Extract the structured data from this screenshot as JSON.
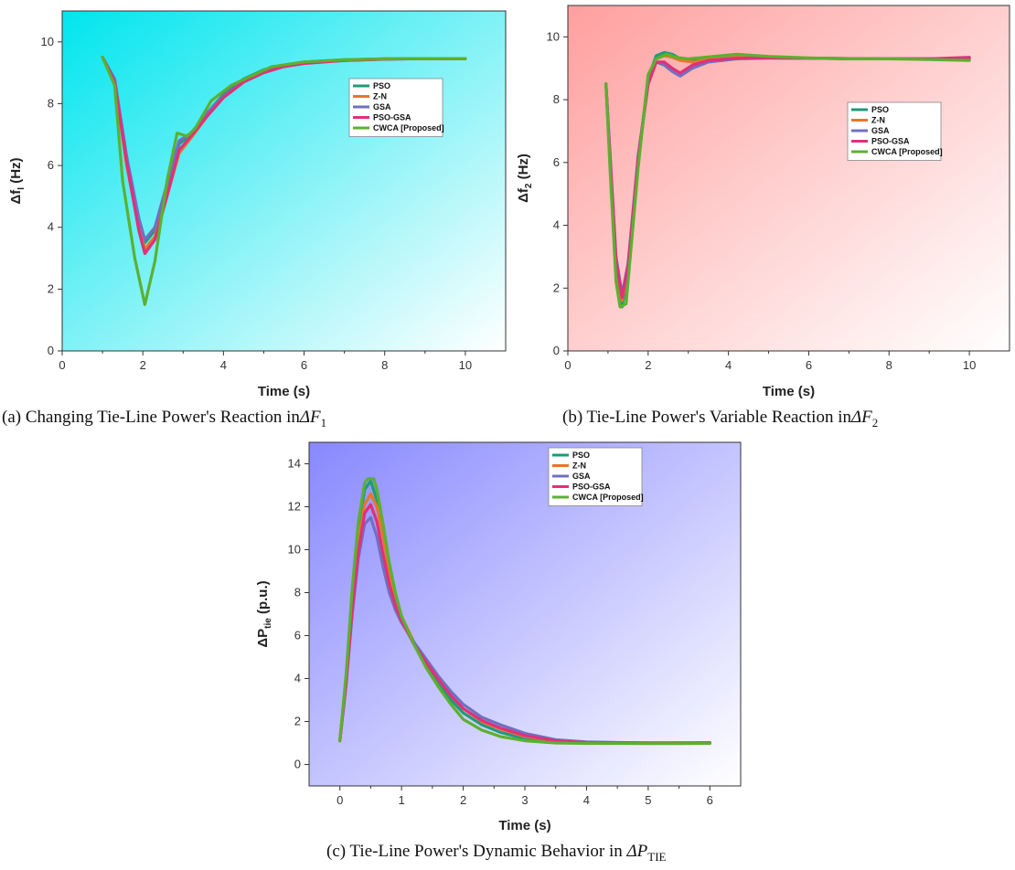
{
  "legend": [
    "PSO",
    "Z-N",
    "GSA",
    "PSO-GSA",
    "CWCA [Proposed]"
  ],
  "colors": {
    "PSO": "#1f9a7a",
    "Z-N": "#e8752a",
    "GSA": "#7070c0",
    "PSO-GSA": "#e0307a",
    "CWCA [Proposed]": "#5cb030"
  },
  "captions": {
    "a": {
      "text": "(a) Changing Tie-Line Power's Reaction in",
      "math": "ΔF",
      "sub": "1"
    },
    "b": {
      "text": "(b) Tie-Line Power's Variable Reaction in",
      "math": "ΔF",
      "sub": "2"
    },
    "c": {
      "text": "(c) Tie-Line Power's Dynamic Behavior in ",
      "math": "ΔP",
      "sub": "TIE"
    }
  },
  "chart_data": [
    {
      "id": "a",
      "type": "line",
      "xlabel": "Time (s)",
      "ylabel": "Δf",
      "ylabel_sub": "I",
      "ylabel_unit": " (Hz)",
      "xlim": [
        0,
        11
      ],
      "ylim": [
        0,
        11
      ],
      "xticks": [
        0,
        2,
        4,
        6,
        8,
        10
      ],
      "yticks": [
        0,
        2,
        4,
        6,
        8,
        10
      ],
      "background": [
        "#00e5ee",
        "#ffffff"
      ],
      "legend_position": "right",
      "series": [
        {
          "name": "PSO",
          "x": [
            1,
            1.3,
            1.6,
            1.9,
            2.05,
            2.3,
            2.6,
            2.9,
            3.2,
            3.6,
            4,
            4.5,
            5,
            5.5,
            6,
            7,
            8,
            9,
            10
          ],
          "y": [
            9.5,
            8.8,
            6.2,
            4.2,
            3.5,
            3.9,
            5.3,
            6.7,
            7.0,
            7.7,
            8.3,
            8.8,
            9.1,
            9.25,
            9.35,
            9.42,
            9.45,
            9.46,
            9.46
          ]
        },
        {
          "name": "Z-N",
          "x": [
            1,
            1.3,
            1.6,
            1.9,
            2.05,
            2.3,
            2.6,
            2.9,
            3.2,
            3.6,
            4,
            4.5,
            5,
            5.5,
            6,
            7,
            8,
            9,
            10
          ],
          "y": [
            9.5,
            8.7,
            6.0,
            4.0,
            3.3,
            3.7,
            5.0,
            6.4,
            6.9,
            7.6,
            8.2,
            8.7,
            9.05,
            9.2,
            9.32,
            9.4,
            9.45,
            9.46,
            9.46
          ]
        },
        {
          "name": "GSA",
          "x": [
            1,
            1.3,
            1.6,
            1.9,
            2.05,
            2.3,
            2.6,
            2.9,
            3.2,
            3.6,
            4,
            4.5,
            5,
            5.5,
            6,
            7,
            8,
            9,
            10
          ],
          "y": [
            9.5,
            8.8,
            6.3,
            4.3,
            3.6,
            4.0,
            5.4,
            6.8,
            7.05,
            7.7,
            8.25,
            8.75,
            9.05,
            9.22,
            9.32,
            9.4,
            9.44,
            9.46,
            9.46
          ]
        },
        {
          "name": "PSO-GSA",
          "x": [
            1,
            1.3,
            1.6,
            1.9,
            2.05,
            2.3,
            2.6,
            2.9,
            3.2,
            3.6,
            4,
            4.5,
            5,
            5.5,
            6,
            7,
            8,
            9,
            10
          ],
          "y": [
            9.5,
            8.7,
            6.1,
            3.9,
            3.15,
            3.6,
            5.0,
            6.5,
            6.95,
            7.6,
            8.2,
            8.7,
            9.0,
            9.2,
            9.3,
            9.4,
            9.44,
            9.46,
            9.46
          ]
        },
        {
          "name": "CWCA [Proposed]",
          "x": [
            1,
            1.3,
            1.5,
            1.8,
            2.05,
            2.3,
            2.6,
            2.85,
            3.1,
            3.3,
            3.7,
            4.2,
            4.7,
            5.2,
            6,
            7,
            8,
            9,
            10
          ],
          "y": [
            9.5,
            8.6,
            5.5,
            3.0,
            1.5,
            2.9,
            5.5,
            7.05,
            6.95,
            7.2,
            8.1,
            8.6,
            8.9,
            9.2,
            9.35,
            9.42,
            9.45,
            9.46,
            9.46
          ]
        }
      ]
    },
    {
      "id": "b",
      "type": "line",
      "xlabel": "Time (s)",
      "ylabel": "Δf",
      "ylabel_sub": "2",
      "ylabel_unit": " (Hz)",
      "xlim": [
        0,
        11
      ],
      "ylim": [
        0,
        11
      ],
      "xticks": [
        0,
        2,
        4,
        6,
        8,
        10
      ],
      "yticks": [
        0,
        2,
        4,
        6,
        8,
        10
      ],
      "background": [
        "#ff9f9f",
        "#ffffff"
      ],
      "legend_position": "right",
      "series": [
        {
          "name": "PSO",
          "x": [
            0.95,
            1.05,
            1.2,
            1.35,
            1.5,
            1.75,
            2.0,
            2.2,
            2.4,
            2.6,
            2.8,
            3.1,
            3.5,
            4.2,
            5,
            6,
            7,
            8,
            9,
            10
          ],
          "y": [
            8.5,
            6.0,
            2.5,
            1.4,
            2.5,
            6.0,
            8.7,
            9.4,
            9.5,
            9.45,
            9.3,
            9.25,
            9.3,
            9.35,
            9.33,
            9.32,
            9.31,
            9.3,
            9.3,
            9.3
          ]
        },
        {
          "name": "Z-N",
          "x": [
            0.95,
            1.05,
            1.2,
            1.35,
            1.5,
            1.75,
            2.0,
            2.2,
            2.4,
            2.6,
            2.8,
            3.1,
            3.5,
            4.2,
            5,
            6,
            7,
            8,
            9,
            10
          ],
          "y": [
            8.5,
            6.2,
            2.8,
            1.6,
            2.6,
            6.1,
            8.6,
            9.3,
            9.4,
            9.35,
            9.25,
            9.2,
            9.28,
            9.35,
            9.33,
            9.32,
            9.31,
            9.3,
            9.3,
            9.3
          ]
        },
        {
          "name": "GSA",
          "x": [
            0.95,
            1.05,
            1.2,
            1.35,
            1.5,
            1.75,
            2.0,
            2.2,
            2.4,
            2.6,
            2.8,
            3.1,
            3.5,
            4.2,
            5,
            6,
            7,
            8,
            9,
            10
          ],
          "y": [
            8.5,
            6.3,
            3.0,
            1.8,
            2.8,
            6.2,
            8.5,
            9.2,
            9.1,
            8.9,
            8.75,
            9.0,
            9.2,
            9.3,
            9.32,
            9.32,
            9.31,
            9.3,
            9.3,
            9.32
          ]
        },
        {
          "name": "PSO-GSA",
          "x": [
            0.95,
            1.05,
            1.2,
            1.35,
            1.5,
            1.75,
            2.0,
            2.2,
            2.4,
            2.6,
            2.8,
            3.1,
            3.5,
            4.2,
            5,
            6,
            7,
            8,
            9,
            10
          ],
          "y": [
            8.5,
            6.2,
            2.9,
            1.7,
            2.7,
            6.1,
            8.5,
            9.2,
            9.2,
            9.0,
            8.85,
            9.1,
            9.25,
            9.32,
            9.33,
            9.32,
            9.31,
            9.3,
            9.3,
            9.35
          ]
        },
        {
          "name": "CWCA [Proposed]",
          "x": [
            0.95,
            1.05,
            1.2,
            1.3,
            1.45,
            1.75,
            2.0,
            2.2,
            2.45,
            2.7,
            3.0,
            3.4,
            4.2,
            5,
            6,
            7,
            8,
            9,
            10
          ],
          "y": [
            8.5,
            5.8,
            2.2,
            1.4,
            1.5,
            5.8,
            8.8,
            9.3,
            9.45,
            9.35,
            9.3,
            9.35,
            9.45,
            9.38,
            9.33,
            9.3,
            9.3,
            9.28,
            9.25
          ]
        }
      ]
    },
    {
      "id": "c",
      "type": "line",
      "xlabel": "Time (s)",
      "ylabel": "ΔP",
      "ylabel_sub": "tie",
      "ylabel_unit": " (p.u.)",
      "xlim": [
        -0.5,
        6.5
      ],
      "ylim": [
        -1,
        15
      ],
      "xticks": [
        0,
        1,
        2,
        3,
        4,
        5,
        6
      ],
      "yticks": [
        0,
        2,
        4,
        6,
        8,
        10,
        12,
        14
      ],
      "background": [
        "#8888ff",
        "#ffffff"
      ],
      "legend_position": "top-right",
      "series": [
        {
          "name": "PSO",
          "x": [
            0,
            0.1,
            0.2,
            0.3,
            0.4,
            0.5,
            0.6,
            0.7,
            0.8,
            0.9,
            1.0,
            1.2,
            1.4,
            1.6,
            1.8,
            2.0,
            2.3,
            2.6,
            3.0,
            3.5,
            4.0,
            4.5,
            5.0,
            5.5,
            6.0
          ],
          "y": [
            1.1,
            4.0,
            7.8,
            10.8,
            12.8,
            13.2,
            12.3,
            10.8,
            9.1,
            7.8,
            6.8,
            5.6,
            4.7,
            3.8,
            3.0,
            2.4,
            1.85,
            1.5,
            1.2,
            1.05,
            1.0,
            1.0,
            1.0,
            1.0,
            1.0
          ]
        },
        {
          "name": "Z-N",
          "x": [
            0,
            0.1,
            0.2,
            0.3,
            0.4,
            0.5,
            0.6,
            0.7,
            0.8,
            0.9,
            1.0,
            1.2,
            1.4,
            1.6,
            1.8,
            2.0,
            2.3,
            2.6,
            3.0,
            3.5,
            4.0,
            4.5,
            5.0,
            5.5,
            6.0
          ],
          "y": [
            1.1,
            3.9,
            7.4,
            10.3,
            12.1,
            12.6,
            12.0,
            10.6,
            9.0,
            7.7,
            6.9,
            5.7,
            4.8,
            3.95,
            3.2,
            2.6,
            2.0,
            1.65,
            1.3,
            1.1,
            1.02,
            1.0,
            1.0,
            1.0,
            1.02
          ]
        },
        {
          "name": "GSA",
          "x": [
            0,
            0.1,
            0.2,
            0.3,
            0.4,
            0.5,
            0.6,
            0.7,
            0.8,
            0.9,
            1.0,
            1.2,
            1.4,
            1.6,
            1.8,
            2.0,
            2.3,
            2.6,
            3.0,
            3.5,
            4.0,
            4.5,
            5.0,
            5.5,
            6.0
          ],
          "y": [
            1.1,
            3.7,
            7.0,
            9.6,
            11.2,
            11.5,
            10.6,
            9.2,
            8.0,
            7.2,
            6.6,
            5.7,
            4.9,
            4.1,
            3.4,
            2.8,
            2.2,
            1.85,
            1.45,
            1.15,
            1.05,
            1.02,
            1.0,
            1.0,
            1.0
          ]
        },
        {
          "name": "PSO-GSA",
          "x": [
            0,
            0.1,
            0.2,
            0.3,
            0.4,
            0.5,
            0.6,
            0.7,
            0.8,
            0.9,
            1.0,
            1.2,
            1.4,
            1.6,
            1.8,
            2.0,
            2.3,
            2.6,
            3.0,
            3.5,
            4.0,
            4.5,
            5.0,
            5.5,
            6.0
          ],
          "y": [
            1.1,
            3.8,
            7.2,
            9.9,
            11.7,
            12.1,
            11.3,
            9.8,
            8.4,
            7.4,
            6.7,
            5.6,
            4.75,
            3.95,
            3.2,
            2.6,
            2.05,
            1.7,
            1.35,
            1.1,
            1.02,
            1.0,
            1.0,
            1.0,
            1.0
          ]
        },
        {
          "name": "CWCA [Proposed]",
          "x": [
            0,
            0.1,
            0.2,
            0.3,
            0.4,
            0.45,
            0.55,
            0.6,
            0.7,
            0.8,
            0.9,
            1.0,
            1.2,
            1.4,
            1.6,
            1.8,
            2.0,
            2.3,
            2.6,
            3.0,
            3.5,
            4.0,
            4.5,
            5.0,
            5.5,
            6.0
          ],
          "y": [
            1.1,
            4.2,
            8.2,
            11.3,
            13.1,
            13.3,
            13.3,
            12.8,
            11.2,
            9.4,
            8.0,
            6.9,
            5.6,
            4.5,
            3.6,
            2.8,
            2.1,
            1.6,
            1.3,
            1.1,
            1.0,
            0.98,
            0.98,
            0.97,
            0.97,
            0.98
          ]
        }
      ]
    }
  ]
}
